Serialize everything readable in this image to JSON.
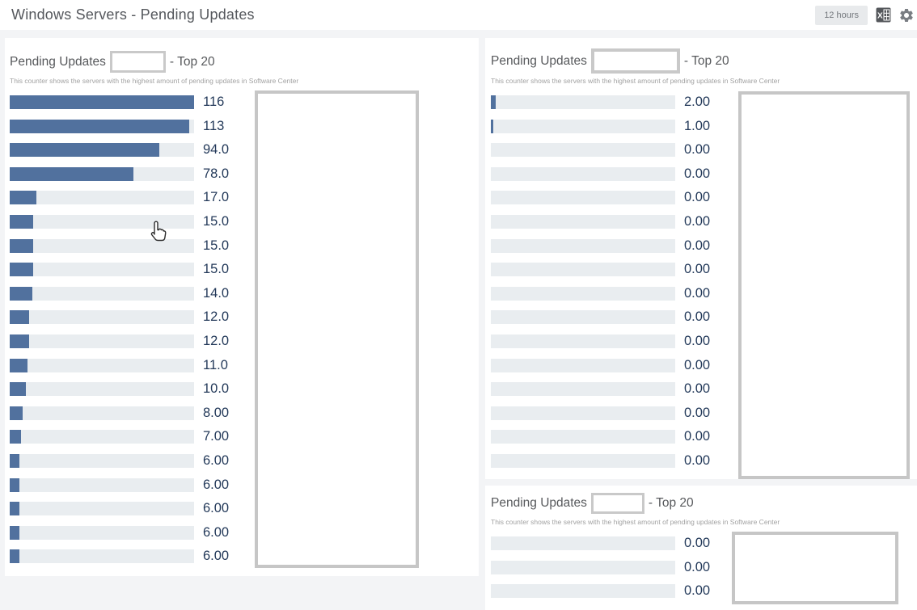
{
  "header": {
    "title": "Windows Servers - Pending Updates",
    "time_range_label": "12 hours",
    "icons": {
      "export": "excel-export-icon",
      "settings": "gear-icon"
    }
  },
  "colors": {
    "bar_fill": "#51719E",
    "bar_track": "#E9EDF0",
    "value_text": "#243A5A",
    "title_text": "#57595C",
    "redact_border": "#C6C6C6"
  },
  "chart_data": [
    {
      "type": "bar",
      "orientation": "horizontal",
      "title_prefix": "Pending Updates",
      "title_suffix": "- Top 20",
      "subtitle": "This counter shows the servers with the highest amount of pending updates in Software Center",
      "categories_redacted": true,
      "grid": false,
      "legend": "none",
      "xlim": [
        0,
        116
      ],
      "values": [
        116,
        113,
        94,
        78,
        17,
        15,
        15,
        15,
        14,
        12,
        12,
        11,
        10,
        8,
        7,
        6,
        6,
        6,
        6,
        6
      ],
      "value_labels": [
        "116",
        "113",
        "94.0",
        "78.0",
        "17.0",
        "15.0",
        "15.0",
        "15.0",
        "14.0",
        "12.0",
        "12.0",
        "11.0",
        "10.0",
        "8.00",
        "7.00",
        "6.00",
        "6.00",
        "6.00",
        "6.00",
        "6.00"
      ]
    },
    {
      "type": "bar",
      "orientation": "horizontal",
      "title_prefix": "Pending Updates",
      "title_suffix": "- Top 20",
      "subtitle": "This counter shows the servers with the highest amount of pending updates in Software Center",
      "categories_redacted": true,
      "grid": false,
      "legend": "none",
      "xlim": [
        0,
        80
      ],
      "values": [
        2,
        1,
        0,
        0,
        0,
        0,
        0,
        0,
        0,
        0,
        0,
        0,
        0,
        0,
        0,
        0
      ],
      "value_labels": [
        "2.00",
        "1.00",
        "0.00",
        "0.00",
        "0.00",
        "0.00",
        "0.00",
        "0.00",
        "0.00",
        "0.00",
        "0.00",
        "0.00",
        "0.00",
        "0.00",
        "0.00",
        "0.00"
      ]
    },
    {
      "type": "bar",
      "orientation": "horizontal",
      "title_prefix": "Pending Updates",
      "title_suffix": "- Top 20",
      "subtitle": "This counter shows the servers with the highest amount of pending updates in Software Center",
      "categories_redacted": true,
      "grid": false,
      "legend": "none",
      "xlim": [
        0,
        80
      ],
      "values": [
        0,
        0,
        0
      ],
      "value_labels": [
        "0.00",
        "0.00",
        "0.00"
      ]
    }
  ]
}
